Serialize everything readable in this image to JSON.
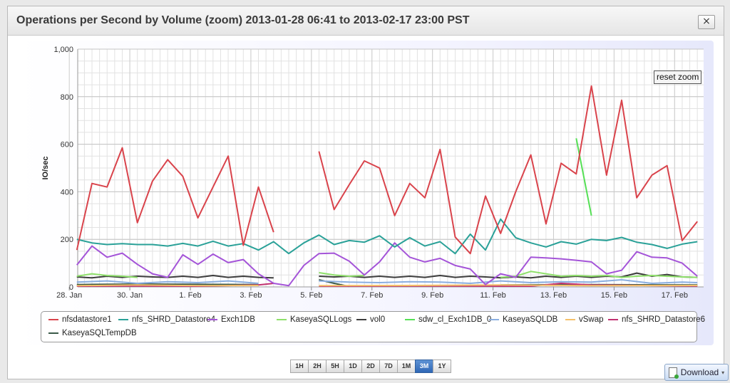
{
  "dialog": {
    "title": "Operations per Second by Volume (zoom) 2013-01-28 06:41 to 2013-02-17 23:00 PST",
    "close_label": "×",
    "reset_zoom_label": "reset zoom",
    "download_label": "Download",
    "range_buttons": [
      {
        "label": "1H",
        "active": false
      },
      {
        "label": "2H",
        "active": false
      },
      {
        "label": "5H",
        "active": false
      },
      {
        "label": "1D",
        "active": false
      },
      {
        "label": "2D",
        "active": false
      },
      {
        "label": "7D",
        "active": false
      },
      {
        "label": "1M",
        "active": false
      },
      {
        "label": "3M",
        "active": true
      },
      {
        "label": "1Y",
        "active": false
      }
    ]
  },
  "chart_data": {
    "type": "line",
    "title": "",
    "xlabel": "",
    "ylabel": "IO/sec",
    "ylim": [
      0,
      1000
    ],
    "y_ticks": [
      0,
      200,
      400,
      600,
      800,
      1000
    ],
    "y_tick_labels": [
      "0",
      "200",
      "400",
      "600",
      "800",
      "1,000"
    ],
    "x_range": [
      "2013-01-28T06:41",
      "2013-02-17T23:00"
    ],
    "x_ticks": [
      "2013-01-28",
      "2013-01-30",
      "2013-02-01",
      "2013-02-03",
      "2013-02-05",
      "2013-02-07",
      "2013-02-09",
      "2013-02-11",
      "2013-02-13",
      "2013-02-15",
      "2013-02-17"
    ],
    "x_tick_labels": [
      "28. Jan",
      "30. Jan",
      "1. Feb",
      "3. Feb",
      "5. Feb",
      "7. Feb",
      "9. Feb",
      "11. Feb",
      "13. Feb",
      "15. Feb",
      "17. Feb"
    ],
    "grid": true,
    "legend_position": "bottom",
    "series": [
      {
        "name": "nfsdatastore1",
        "color": "#d9434b",
        "x": [
          "2013-01-28T06:00",
          "2013-01-28T18:00",
          "2013-01-29T06:00",
          "2013-01-29T18:00",
          "2013-01-30T06:00",
          "2013-01-30T18:00",
          "2013-01-31T06:00",
          "2013-01-31T18:00",
          "2013-02-01T06:00",
          "2013-02-01T18:00",
          "2013-02-02T06:00",
          "2013-02-02T18:00",
          "2013-02-03T06:00",
          "2013-02-03T18:00",
          null,
          "2013-02-05T06:00",
          "2013-02-05T18:00",
          "2013-02-06T06:00",
          "2013-02-06T18:00",
          "2013-02-07T06:00",
          "2013-02-07T18:00",
          "2013-02-08T06:00",
          "2013-02-08T18:00",
          "2013-02-09T06:00",
          "2013-02-09T18:00",
          "2013-02-10T06:00",
          "2013-02-10T18:00",
          "2013-02-11T06:00",
          "2013-02-11T18:00",
          "2013-02-12T06:00",
          "2013-02-12T18:00",
          "2013-02-13T06:00",
          "2013-02-13T18:00",
          "2013-02-14T06:00",
          "2013-02-14T18:00",
          "2013-02-15T06:00",
          "2013-02-15T18:00",
          "2013-02-16T06:00",
          "2013-02-16T18:00",
          "2013-02-17T06:00",
          "2013-02-17T18:00"
        ],
        "y": [
          155,
          435,
          420,
          585,
          270,
          445,
          535,
          465,
          290,
          420,
          550,
          175,
          420,
          230,
          null,
          570,
          325,
          430,
          530,
          500,
          300,
          435,
          375,
          578,
          210,
          140,
          382,
          225,
          400,
          555,
          265,
          520,
          475,
          845,
          470,
          785,
          375,
          470,
          510,
          195,
          275
        ]
      },
      {
        "name": "nfs_SHRD_Datastore4",
        "color": "#2aa198",
        "x": [
          "2013-01-28T06:00",
          "2013-01-28T18:00",
          "2013-01-29T06:00",
          "2013-01-29T18:00",
          "2013-01-30T06:00",
          "2013-01-30T18:00",
          "2013-01-31T06:00",
          "2013-01-31T18:00",
          "2013-02-01T06:00",
          "2013-02-01T18:00",
          "2013-02-02T06:00",
          "2013-02-02T18:00",
          "2013-02-03T06:00",
          "2013-02-03T18:00",
          "2013-02-04T06:00",
          "2013-02-04T18:00",
          "2013-02-05T06:00",
          "2013-02-05T18:00",
          "2013-02-06T06:00",
          "2013-02-06T18:00",
          "2013-02-07T06:00",
          "2013-02-07T18:00",
          "2013-02-08T06:00",
          "2013-02-08T18:00",
          "2013-02-09T06:00",
          "2013-02-09T18:00",
          "2013-02-10T06:00",
          "2013-02-10T18:00",
          "2013-02-11T06:00",
          "2013-02-11T18:00",
          "2013-02-12T06:00",
          "2013-02-12T18:00",
          "2013-02-13T06:00",
          "2013-02-13T18:00",
          "2013-02-14T06:00",
          "2013-02-14T18:00",
          "2013-02-15T06:00",
          "2013-02-15T18:00",
          "2013-02-16T06:00",
          "2013-02-16T18:00",
          "2013-02-17T06:00",
          "2013-02-17T18:00"
        ],
        "y": [
          200,
          185,
          178,
          182,
          178,
          178,
          172,
          183,
          172,
          192,
          172,
          182,
          155,
          190,
          140,
          185,
          218,
          178,
          195,
          188,
          215,
          168,
          207,
          172,
          190,
          140,
          222,
          155,
          285,
          207,
          185,
          168,
          190,
          180,
          200,
          195,
          208,
          188,
          178,
          162,
          180,
          190
        ]
      },
      {
        "name": "Exch1DB",
        "color": "#a454d8",
        "x": [
          "2013-01-28T06:00",
          "2013-01-28T18:00",
          "2013-01-29T06:00",
          "2013-01-29T18:00",
          "2013-01-30T06:00",
          "2013-01-30T18:00",
          "2013-01-31T06:00",
          "2013-01-31T18:00",
          "2013-02-01T06:00",
          "2013-02-01T18:00",
          "2013-02-02T06:00",
          "2013-02-02T18:00",
          "2013-02-03T06:00",
          "2013-02-03T18:00",
          "2013-02-04T06:00",
          "2013-02-04T18:00",
          "2013-02-05T06:00",
          "2013-02-05T18:00",
          "2013-02-06T06:00",
          "2013-02-06T18:00",
          "2013-02-07T06:00",
          "2013-02-07T18:00",
          "2013-02-08T06:00",
          "2013-02-08T18:00",
          "2013-02-09T06:00",
          "2013-02-09T18:00",
          "2013-02-10T06:00",
          "2013-02-10T18:00",
          "2013-02-11T06:00",
          "2013-02-11T18:00",
          "2013-02-12T06:00",
          "2013-02-12T18:00",
          "2013-02-13T06:00",
          "2013-02-13T18:00",
          "2013-02-14T06:00",
          "2013-02-14T18:00",
          "2013-02-15T06:00",
          "2013-02-15T18:00",
          "2013-02-16T06:00",
          "2013-02-16T18:00",
          "2013-02-17T06:00",
          "2013-02-17T18:00"
        ],
        "y": [
          92,
          172,
          125,
          142,
          95,
          55,
          40,
          135,
          95,
          138,
          102,
          115,
          55,
          15,
          5,
          90,
          140,
          142,
          108,
          50,
          105,
          185,
          125,
          105,
          120,
          90,
          75,
          10,
          55,
          40,
          125,
          122,
          118,
          112,
          105,
          55,
          70,
          148,
          125,
          122,
          100,
          45
        ]
      },
      {
        "name": "KaseyaSQLLogs",
        "color": "#8ee06a",
        "x": [
          "2013-01-28T06:00",
          "2013-01-28T18:00",
          "2013-01-29T06:00",
          "2013-01-29T18:00",
          "2013-01-30T06:00",
          null,
          "2013-02-05T06:00",
          "2013-02-05T18:00",
          "2013-02-06T06:00",
          "2013-02-06T18:00",
          null,
          "2013-02-11T06:00",
          "2013-02-11T18:00",
          "2013-02-12T06:00",
          "2013-02-12T18:00",
          "2013-02-13T06:00",
          "2013-02-13T18:00",
          "2013-02-14T06:00",
          "2013-02-14T18:00",
          "2013-02-15T06:00",
          "2013-02-15T18:00",
          "2013-02-16T06:00",
          "2013-02-16T18:00",
          "2013-02-17T06:00",
          "2013-02-17T18:00"
        ],
        "y": [
          45,
          55,
          48,
          45,
          40,
          null,
          60,
          50,
          45,
          48,
          null,
          40,
          45,
          65,
          55,
          45,
          48,
          45,
          48,
          40,
          45,
          48,
          45,
          42,
          40
        ]
      },
      {
        "name": "vol0",
        "color": "#3c3c3c",
        "x": [
          "2013-01-28T06:00",
          "2013-01-28T18:00",
          "2013-01-29T06:00",
          "2013-01-29T18:00",
          "2013-01-30T06:00",
          "2013-01-30T18:00",
          "2013-01-31T06:00",
          "2013-01-31T18:00",
          "2013-02-01T06:00",
          "2013-02-01T18:00",
          "2013-02-02T06:00",
          "2013-02-02T18:00",
          "2013-02-03T06:00",
          "2013-02-03T18:00",
          null,
          "2013-02-05T06:00",
          "2013-02-05T18:00",
          "2013-02-06T06:00",
          "2013-02-06T18:00",
          "2013-02-07T06:00",
          "2013-02-07T18:00",
          "2013-02-08T06:00",
          "2013-02-08T18:00",
          "2013-02-09T06:00",
          "2013-02-09T18:00",
          "2013-02-10T06:00",
          "2013-02-10T18:00",
          "2013-02-11T06:00",
          "2013-02-11T18:00",
          "2013-02-12T06:00",
          "2013-02-12T18:00",
          "2013-02-13T06:00",
          "2013-02-13T18:00",
          "2013-02-14T06:00",
          "2013-02-14T18:00",
          "2013-02-15T06:00",
          "2013-02-15T18:00",
          "2013-02-16T06:00",
          "2013-02-16T18:00",
          "2013-02-17T06:00",
          "2013-02-17T18:00"
        ],
        "y": [
          42,
          38,
          45,
          40,
          45,
          42,
          40,
          45,
          40,
          48,
          40,
          45,
          40,
          38,
          null,
          45,
          42,
          45,
          40,
          45,
          40,
          45,
          40,
          48,
          40,
          45,
          42,
          38,
          42,
          38,
          45,
          40,
          45,
          40,
          45,
          42,
          58,
          45,
          52,
          42,
          40
        ]
      },
      {
        "name": "sdw_cl_Exch1DB_0",
        "color": "#55e055",
        "x": [
          "2013-02-13T18:00",
          "2013-02-14T06:00"
        ],
        "y": [
          625,
          300
        ]
      },
      {
        "name": "KaseyaSQLDB",
        "color": "#8aaee0",
        "x": [
          "2013-01-28T06:00",
          "2013-01-29T06:00",
          "2013-01-30T06:00",
          "2013-01-31T06:00",
          "2013-02-01T06:00",
          "2013-02-02T06:00",
          "2013-02-03T06:00",
          null,
          "2013-02-05T06:00",
          "2013-02-06T06:00",
          "2013-02-07T06:00",
          "2013-02-08T06:00",
          "2013-02-09T06:00",
          "2013-02-10T06:00",
          "2013-02-11T06:00",
          "2013-02-12T06:00",
          "2013-02-13T06:00",
          "2013-02-14T06:00",
          "2013-02-15T06:00",
          "2013-02-16T06:00",
          "2013-02-17T06:00",
          "2013-02-17T18:00"
        ],
        "y": [
          20,
          25,
          15,
          22,
          18,
          25,
          15,
          null,
          25,
          20,
          18,
          22,
          20,
          15,
          25,
          18,
          22,
          20,
          30,
          15,
          20,
          18
        ]
      },
      {
        "name": "vSwap",
        "color": "#f5c06a",
        "x": [
          "2013-01-28T06:00",
          "2013-01-30T06:00",
          "2013-02-01T06:00",
          "2013-02-03T06:00",
          null,
          "2013-02-05T06:00",
          "2013-02-08T06:00",
          "2013-02-11T06:00",
          "2013-02-14T06:00",
          "2013-02-17T18:00"
        ],
        "y": [
          5,
          8,
          5,
          6,
          null,
          5,
          6,
          8,
          5,
          6
        ]
      },
      {
        "name": "nfs_SHRD_Datastore6",
        "color": "#c03070",
        "x": [
          "2013-01-28T06:00",
          "2013-01-30T06:00",
          "2013-02-01T06:00",
          "2013-02-03T06:00",
          "2013-02-03T18:00",
          null,
          "2013-02-05T06:00",
          "2013-02-08T06:00",
          "2013-02-12T06:00",
          "2013-02-13T06:00",
          "2013-02-14T06:00",
          "2013-02-17T18:00"
        ],
        "y": [
          3,
          4,
          3,
          8,
          15,
          null,
          3,
          4,
          3,
          15,
          8,
          4
        ]
      },
      {
        "name": "KaseyaSQLTempDB",
        "color": "#3a5a48",
        "x": [
          "2013-01-28T06:00",
          "2013-01-30T06:00",
          "2013-02-03T06:00",
          null,
          "2013-02-05T06:00",
          "2013-02-05T18:00",
          "2013-02-06T06:00",
          null,
          "2013-02-11T06:00",
          "2013-02-14T06:00",
          "2013-02-17T18:00"
        ],
        "y": [
          10,
          12,
          10,
          null,
          30,
          15,
          2,
          null,
          8,
          10,
          8
        ]
      }
    ]
  }
}
